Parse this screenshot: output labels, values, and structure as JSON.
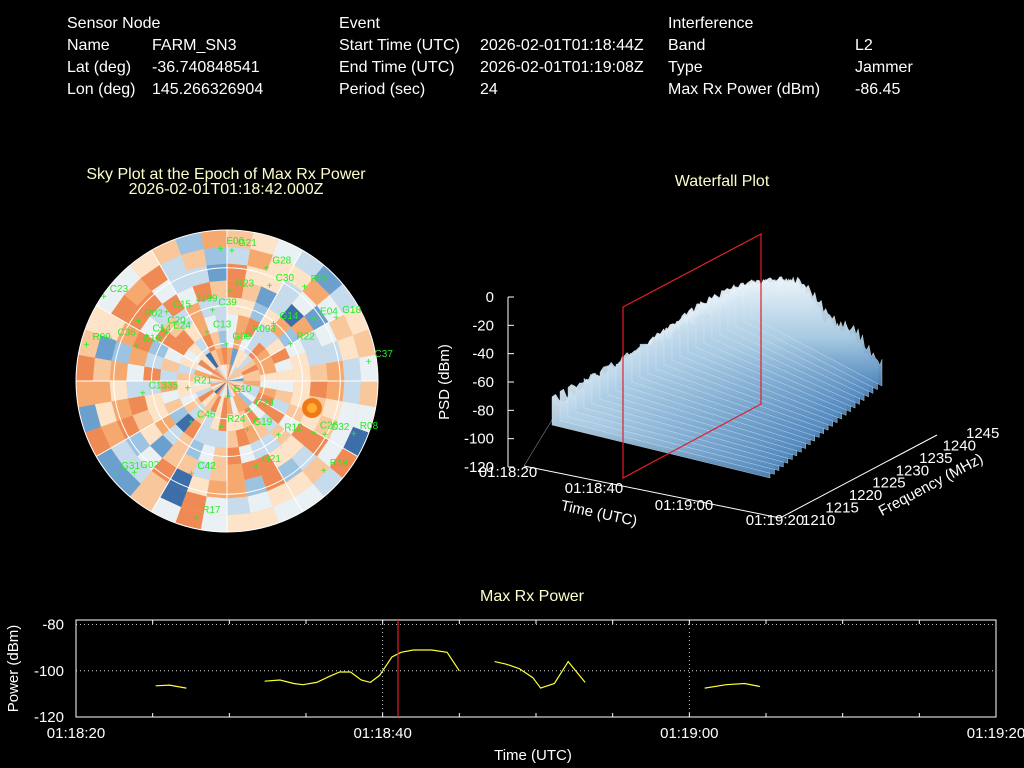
{
  "header": {
    "sensor_node": {
      "title": "Sensor Node",
      "rows": [
        {
          "label": "Name",
          "value": "FARM_SN3"
        },
        {
          "label": "Lat (deg)",
          "value": "-36.740848541"
        },
        {
          "label": "Lon (deg)",
          "value": "145.266326904"
        }
      ]
    },
    "event": {
      "title": "Event",
      "rows": [
        {
          "label": "Start Time (UTC)",
          "value": "2026-02-01T01:18:44Z"
        },
        {
          "label": "End Time (UTC)",
          "value": "2026-02-01T01:19:08Z"
        },
        {
          "label": "Period (sec)",
          "value": "24"
        }
      ]
    },
    "interference": {
      "title": "Interference",
      "rows": [
        {
          "label": "Band",
          "value": "L2"
        },
        {
          "label": "Type",
          "value": "Jammer"
        },
        {
          "label": "Max Rx Power (dBm)",
          "value": "-86.45"
        }
      ]
    }
  },
  "sky_plot": {
    "title": "Sky Plot at the Epoch of Max Rx Power",
    "subtitle": "2026-02-01T01:18:42.000Z",
    "satellites": [
      {
        "id": "E06",
        "az": 358,
        "el": 88
      },
      {
        "id": "G21",
        "az": 3,
        "el": 87
      },
      {
        "id": "G28",
        "az": 20,
        "el": 80
      },
      {
        "id": "R22",
        "az": 40,
        "el": 82
      },
      {
        "id": "C30",
        "az": 25,
        "el": 70
      },
      {
        "id": "E04",
        "az": 55,
        "el": 72
      },
      {
        "id": "G18",
        "az": 60,
        "el": 85
      },
      {
        "id": "C37",
        "az": 82,
        "el": 96
      },
      {
        "id": "R23",
        "az": 3,
        "el": 60
      },
      {
        "id": "J199",
        "az": 335,
        "el": 55
      },
      {
        "id": "C39",
        "az": 350,
        "el": 48
      },
      {
        "id": "G14",
        "az": 40,
        "el": 50
      },
      {
        "id": "R22",
        "az": 60,
        "el": 50
      },
      {
        "id": "C13",
        "az": 340,
        "el": 35
      },
      {
        "id": "R093",
        "az": 25,
        "el": 33
      },
      {
        "id": "G09",
        "az": 2,
        "el": 25
      },
      {
        "id": "R02",
        "az": 305,
        "el": 70
      },
      {
        "id": "C23",
        "az": 305,
        "el": 98
      },
      {
        "id": "C15",
        "az": 320,
        "el": 60
      },
      {
        "id": "C20",
        "az": 310,
        "el": 55
      },
      {
        "id": "E24",
        "az": 310,
        "el": 50
      },
      {
        "id": "C14",
        "az": 300,
        "el": 60
      },
      {
        "id": "C36",
        "az": 290,
        "el": 80
      },
      {
        "id": "R09",
        "az": 285,
        "el": 95
      },
      {
        "id": "C19",
        "az": 292,
        "el": 63
      },
      {
        "id": "R21",
        "az": 260,
        "el": 25
      },
      {
        "id": "C1335",
        "az": 262,
        "el": 55
      },
      {
        "id": "C46",
        "az": 220,
        "el": 35
      },
      {
        "id": "E10",
        "az": 170,
        "el": 10
      },
      {
        "id": "R24",
        "az": 185,
        "el": 30
      },
      {
        "id": "C29",
        "az": 140,
        "el": 25
      },
      {
        "id": "G19",
        "az": 155,
        "el": 35
      },
      {
        "id": "R12",
        "az": 135,
        "el": 50
      },
      {
        "id": "C26",
        "az": 120,
        "el": 68
      },
      {
        "id": "C32",
        "az": 118,
        "el": 75
      },
      {
        "id": "R18",
        "az": 132,
        "el": 88
      },
      {
        "id": "G21",
        "az": 160,
        "el": 60
      },
      {
        "id": "C42",
        "az": 200,
        "el": 65
      },
      {
        "id": "G02",
        "az": 225,
        "el": 85
      },
      {
        "id": "R17",
        "az": 192,
        "el": 92
      },
      {
        "id": "G31",
        "az": 230,
        "el": 95
      },
      {
        "id": "R08",
        "az": 112,
        "el": 92
      }
    ]
  },
  "waterfall": {
    "title": "Waterfall Plot",
    "zlabel": "PSD (dBm)",
    "xlabel": "Time (UTC)",
    "ylabel": "Frequency (MHz)",
    "z_ticks": [
      "0",
      "-20",
      "-40",
      "-60",
      "-80",
      "-100",
      "-120"
    ],
    "time_ticks": [
      "01:18:20",
      "01:18:40",
      "01:19:00",
      "01:19:20"
    ],
    "freq_ticks": [
      "1210",
      "1215",
      "1220",
      "1225",
      "1230",
      "1235",
      "1240",
      "1245"
    ]
  },
  "chart_data": {
    "type": "line",
    "title": "Max Rx Power",
    "xlabel": "Time (UTC)",
    "ylabel": "Power (dBm)",
    "x_ticks": [
      "01:18:20",
      "01:18:40",
      "01:19:00",
      "01:19:20"
    ],
    "y_ticks": [
      "-80",
      "-100",
      "-120"
    ],
    "xlim": [
      0,
      60
    ],
    "ylim": [
      -120,
      -78
    ],
    "grid": true,
    "marker_time": 21,
    "series": [
      {
        "segments": [
          [
            [
              5.2,
              -106.5
            ],
            [
              6.1,
              -106.2
            ],
            [
              7.2,
              -107.5
            ]
          ],
          [
            [
              12.3,
              -104.5
            ],
            [
              13.3,
              -104.0
            ],
            [
              14.2,
              -105.5
            ],
            [
              14.8,
              -106.0
            ],
            [
              15.7,
              -105.0
            ],
            [
              16.5,
              -102.5
            ],
            [
              17.2,
              -100.5
            ],
            [
              17.9,
              -100.5
            ],
            [
              18.6,
              -104.0
            ],
            [
              19.2,
              -105.0
            ],
            [
              19.8,
              -102.0
            ],
            [
              20.6,
              -94.0
            ],
            [
              21.2,
              -92.0
            ],
            [
              22.0,
              -91.0
            ],
            [
              23.2,
              -91.0
            ],
            [
              24.2,
              -92.0
            ],
            [
              25.0,
              -100.0
            ]
          ],
          [
            [
              27.3,
              -96.0
            ],
            [
              28.0,
              -97.0
            ],
            [
              28.9,
              -99.0
            ],
            [
              29.8,
              -103.0
            ],
            [
              30.3,
              -107.5
            ],
            [
              31.2,
              -105.5
            ],
            [
              32.1,
              -96.0
            ],
            [
              33.2,
              -105.0
            ]
          ],
          [
            [
              41.0,
              -107.5
            ],
            [
              42.4,
              -106.0
            ],
            [
              43.6,
              -105.5
            ],
            [
              44.6,
              -106.8
            ]
          ]
        ]
      }
    ]
  }
}
